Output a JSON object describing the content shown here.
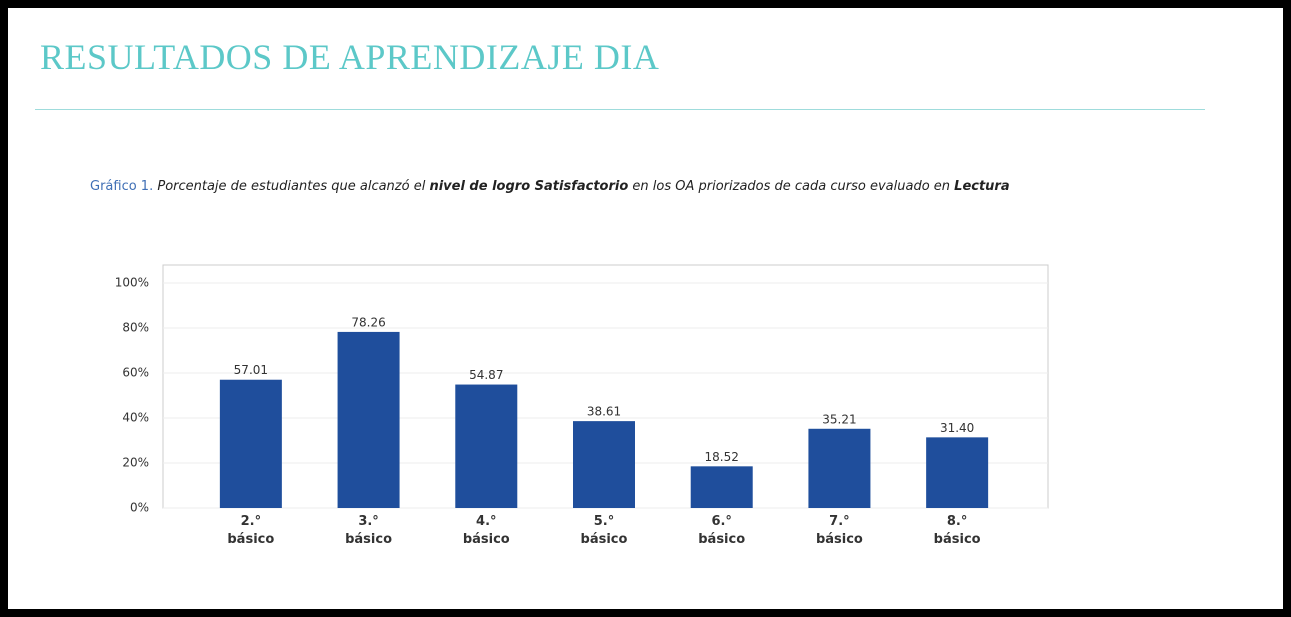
{
  "header": {
    "title": "RESULTADOS DE APRENDIZAJE DIA"
  },
  "caption": [
    {
      "text": "Gráfico 1.",
      "style": "label"
    },
    {
      "text": " Porcentaje de estudiantes que alcanzó el ",
      "style": "italic"
    },
    {
      "text": "nivel de logro Satisfactorio",
      "style": "bold-italic"
    },
    {
      "text": " en los OA priorizados de cada curso evaluado en ",
      "style": "italic"
    },
    {
      "text": "Lectura",
      "style": "bold-italic"
    }
  ],
  "chart_data": {
    "type": "bar",
    "categories": [
      "2.° básico",
      "3.° básico",
      "4.° básico",
      "5.° básico",
      "6.° básico",
      "7.° básico",
      "8.° básico"
    ],
    "values": [
      57.01,
      78.26,
      54.87,
      38.61,
      18.52,
      35.21,
      31.4
    ],
    "value_labels": [
      "57.01",
      "78.26",
      "54.87",
      "38.61",
      "18.52",
      "35.21",
      "31.40"
    ],
    "color": "#1f4e9c",
    "ylim": [
      0,
      100
    ],
    "yticks": [
      {
        "value": 0,
        "label": "0%"
      },
      {
        "value": 20,
        "label": "20%"
      },
      {
        "value": 40,
        "label": "40%"
      },
      {
        "value": 60,
        "label": "60%"
      },
      {
        "value": 80,
        "label": "80%"
      },
      {
        "value": 100,
        "label": "100%"
      }
    ],
    "grid": true
  }
}
